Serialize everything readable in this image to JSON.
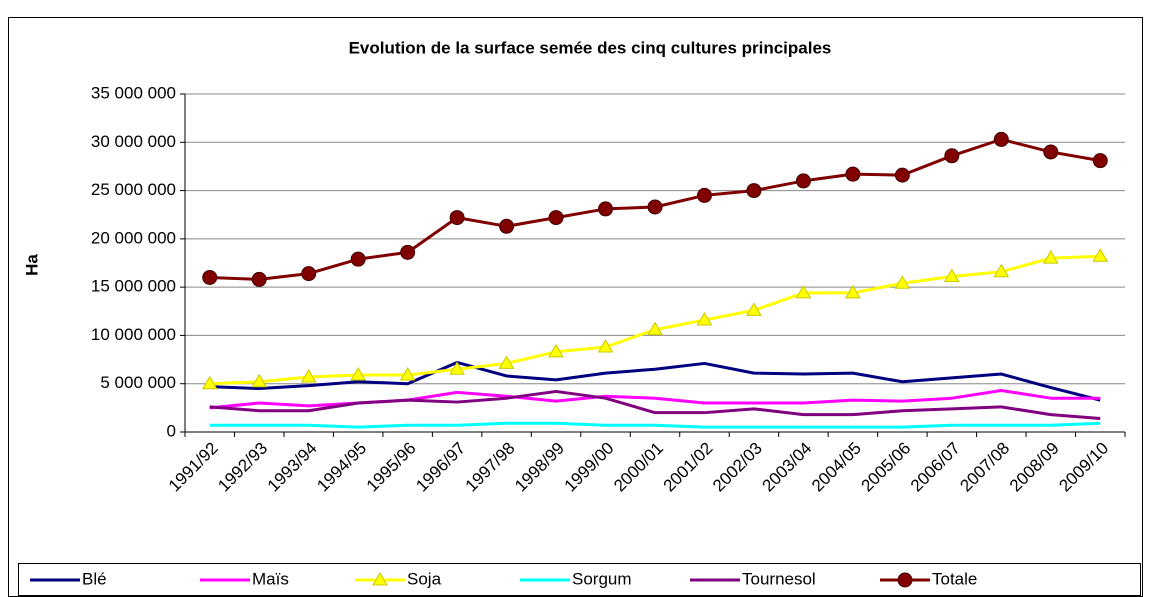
{
  "chart_data": {
    "type": "line",
    "title": "Evolution de la surface semée des cinq cultures principales",
    "y_label": "Ha",
    "categories": [
      "1991/92",
      "1992/93",
      "1993/94",
      "1994/95",
      "1995/96",
      "1996/97",
      "1997/98",
      "1998/99",
      "1999/00",
      "2000/01",
      "2001/02",
      "2002/03",
      "2003/04",
      "2004/05",
      "2005/06",
      "2006/07",
      "2007/08",
      "2008/09",
      "2009/10"
    ],
    "series": [
      {
        "name": "Blé",
        "color": "#000080",
        "values": [
          4700000,
          4500000,
          4800000,
          5200000,
          5000000,
          7200000,
          5800000,
          5400000,
          6100000,
          6500000,
          7100000,
          6100000,
          6000000,
          6100000,
          5200000,
          5600000,
          6000000,
          4600000,
          3300000
        ]
      },
      {
        "name": "Maïs",
        "color": "#ff00ff",
        "values": [
          2500000,
          3000000,
          2700000,
          3000000,
          3300000,
          4100000,
          3700000,
          3200000,
          3700000,
          3500000,
          3000000,
          3000000,
          3000000,
          3300000,
          3200000,
          3500000,
          4300000,
          3500000,
          3500000
        ]
      },
      {
        "name": "Soja",
        "color": "#ffff00",
        "marker": "triangle",
        "values": [
          5000000,
          5200000,
          5700000,
          5900000,
          5900000,
          6500000,
          7100000,
          8300000,
          8800000,
          10600000,
          11600000,
          12600000,
          14400000,
          14400000,
          15400000,
          16100000,
          16600000,
          18000000,
          18200000
        ]
      },
      {
        "name": "Sorgum",
        "color": "#00ffff",
        "values": [
          700000,
          700000,
          700000,
          500000,
          700000,
          700000,
          900000,
          900000,
          700000,
          700000,
          500000,
          500000,
          500000,
          500000,
          500000,
          700000,
          700000,
          700000,
          900000
        ]
      },
      {
        "name": "Tournesol",
        "color": "#800080",
        "values": [
          2600000,
          2200000,
          2200000,
          3000000,
          3300000,
          3100000,
          3500000,
          4200000,
          3500000,
          2000000,
          2000000,
          2400000,
          1800000,
          1800000,
          2200000,
          2400000,
          2600000,
          1800000,
          1400000
        ]
      },
      {
        "name": "Totale",
        "color": "#800000",
        "marker": "circle",
        "values": [
          16000000,
          15800000,
          16400000,
          17900000,
          18600000,
          22200000,
          21300000,
          22200000,
          23100000,
          23300000,
          24500000,
          25000000,
          26000000,
          26700000,
          26600000,
          28600000,
          30300000,
          29000000,
          28100000
        ]
      }
    ],
    "ylim": [
      0,
      35000000
    ],
    "yticks": [
      0,
      {
        "value": 5000000,
        "label": "5 000 000"
      },
      {
        "value": 10000000,
        "label": "10 000 000"
      },
      {
        "value": 15000000,
        "label": "15 000 000"
      },
      {
        "value": 20000000,
        "label": "20 000 000"
      },
      {
        "value": 25000000,
        "label": "25 000 000"
      },
      {
        "value": 30000000,
        "label": "30 000 000"
      },
      {
        "value": 35000000,
        "label": "35 000 000"
      }
    ],
    "grid": true,
    "legend": "bottom"
  }
}
